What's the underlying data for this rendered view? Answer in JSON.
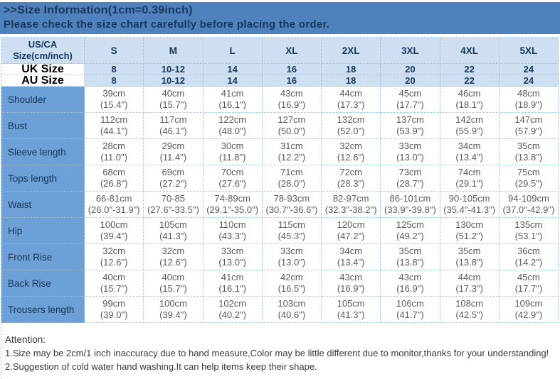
{
  "banner": {
    "title": ">>Size Information(1cm=0.39inch)",
    "subtitle": "Please check the size chart carefully before placing the order."
  },
  "table": {
    "corner_line1": "US/CA",
    "corner_line2": "Size(cm/inch)",
    "size_columns": [
      "S",
      "M",
      "L",
      "XL",
      "2XL",
      "3XL",
      "4XL",
      "5XL"
    ],
    "size_rows": [
      {
        "label": "UK Size",
        "values": [
          "8",
          "10-12",
          "14",
          "16",
          "18",
          "20",
          "22",
          "24"
        ]
      },
      {
        "label": "AU Size",
        "values": [
          "8",
          "10-12",
          "14",
          "16",
          "18",
          "20",
          "22",
          "24"
        ]
      }
    ],
    "measurement_rows": [
      {
        "label": "Shoulder",
        "cm": [
          "39cm",
          "40cm",
          "41cm",
          "43cm",
          "44cm",
          "45cm",
          "46cm",
          "48cm"
        ],
        "inch": [
          "(15.4\")",
          "(15.7\")",
          "(16.1\")",
          "(16.9\")",
          "(17.3\")",
          "(17.7\")",
          "(18.1\")",
          "(18.9\")"
        ]
      },
      {
        "label": "Bust",
        "cm": [
          "112cm",
          "117cm",
          "122cm",
          "127cm",
          "132cm",
          "137cm",
          "142cm",
          "147cm"
        ],
        "inch": [
          "(44.1\")",
          "(46.1\")",
          "(48.0\")",
          "(50.0\")",
          "(52.0\")",
          "(53.9\")",
          "(55.9\")",
          "(57.9\")"
        ]
      },
      {
        "label": "Sleeve length",
        "cm": [
          "28cm",
          "29cm",
          "30cm",
          "31cm",
          "32cm",
          "33cm",
          "34cm",
          "35cm"
        ],
        "inch": [
          "(11.0\")",
          "(11.4\")",
          "(11.8\")",
          "(12.2\")",
          "(12.6\")",
          "(13.0\")",
          "(13.4\")",
          "(13.8\")"
        ]
      },
      {
        "label": "Tops length",
        "cm": [
          "68cm",
          "69cm",
          "70cm",
          "71cm",
          "72cm",
          "73cm",
          "74cm",
          "75cm"
        ],
        "inch": [
          "(26.8\")",
          "(27.2\")",
          "(27.6\")",
          "(28.0\")",
          "(28.3\")",
          "(28.7\")",
          "(29.1\")",
          "(29.5\")"
        ]
      },
      {
        "label": "Waist",
        "cm": [
          "66-81cm",
          "70-85",
          "74-89cm",
          "78-93cm",
          "82-97cm",
          "86-101cm",
          "90-105cm",
          "94-109cm"
        ],
        "inch": [
          "(26.0\"-31.9\")",
          "(27.6\"-33.5\")",
          "(29.1\"-35.0\")",
          "(30.7\"-36.6\")",
          "(32.3\"-38.2\")",
          "(33.9\"-39.8\")",
          "(35.4\"-41.3\")",
          "(37.0\"-42.9\")"
        ]
      },
      {
        "label": "Hip",
        "cm": [
          "100cm",
          "105cm",
          "110cm",
          "115cm",
          "120cm",
          "125cm",
          "130cm",
          "135cm"
        ],
        "inch": [
          "(39.4\")",
          "(41.3\")",
          "(43.3\")",
          "(45.3\")",
          "(47.2\")",
          "(49.2\")",
          "(51.2\")",
          "(53.1\")"
        ]
      },
      {
        "label": "Front Rise",
        "cm": [
          "32cm",
          "32cm",
          "33cm",
          "33cm",
          "34cm",
          "35cm",
          "35cm",
          "36cm"
        ],
        "inch": [
          "(12.6\")",
          "(12.6\")",
          "(13.0\")",
          "(13.0\")",
          "(13.4\")",
          "(13.8\")",
          "(13.8\")",
          "(14.2\")"
        ]
      },
      {
        "label": "Back Rise",
        "cm": [
          "40cm",
          "40cm",
          "41cm",
          "42cm",
          "43cm",
          "43cm",
          "44cm",
          "45cm"
        ],
        "inch": [
          "(15.7\")",
          "(15.7\")",
          "(16.1\")",
          "(16.5\")",
          "(16.9\")",
          "(16.9\")",
          "(17.3\")",
          "(17.7\")"
        ]
      },
      {
        "label": "Trousers length",
        "cm": [
          "99cm",
          "100cm",
          "102cm",
          "103cm",
          "105cm",
          "106cm",
          "108cm",
          "109cm"
        ],
        "inch": [
          "(39.0\")",
          "(39.4\")",
          "(40.2\")",
          "(40.6\")",
          "(41.3\")",
          "(41.7\")",
          "(42.5\")",
          "(42.9\")"
        ]
      }
    ]
  },
  "footer": {
    "attention": "Attention:",
    "notes": [
      "1.Size may be 2cm/1 inch inaccuracy due to hand measure,Color may be little different due to monitor,thanks for your understanding!",
      "2.Suggestion of cold water hand washing.It can help items keep their shape."
    ]
  },
  "colors": {
    "banner_bg": "#4f81bd",
    "banner_text": "#17375e",
    "header_bg": "#cddff0",
    "label_col_bg": "#6da0d6",
    "grid_dotted": "#9cc0e0",
    "data_text": "#5a5a5a"
  }
}
